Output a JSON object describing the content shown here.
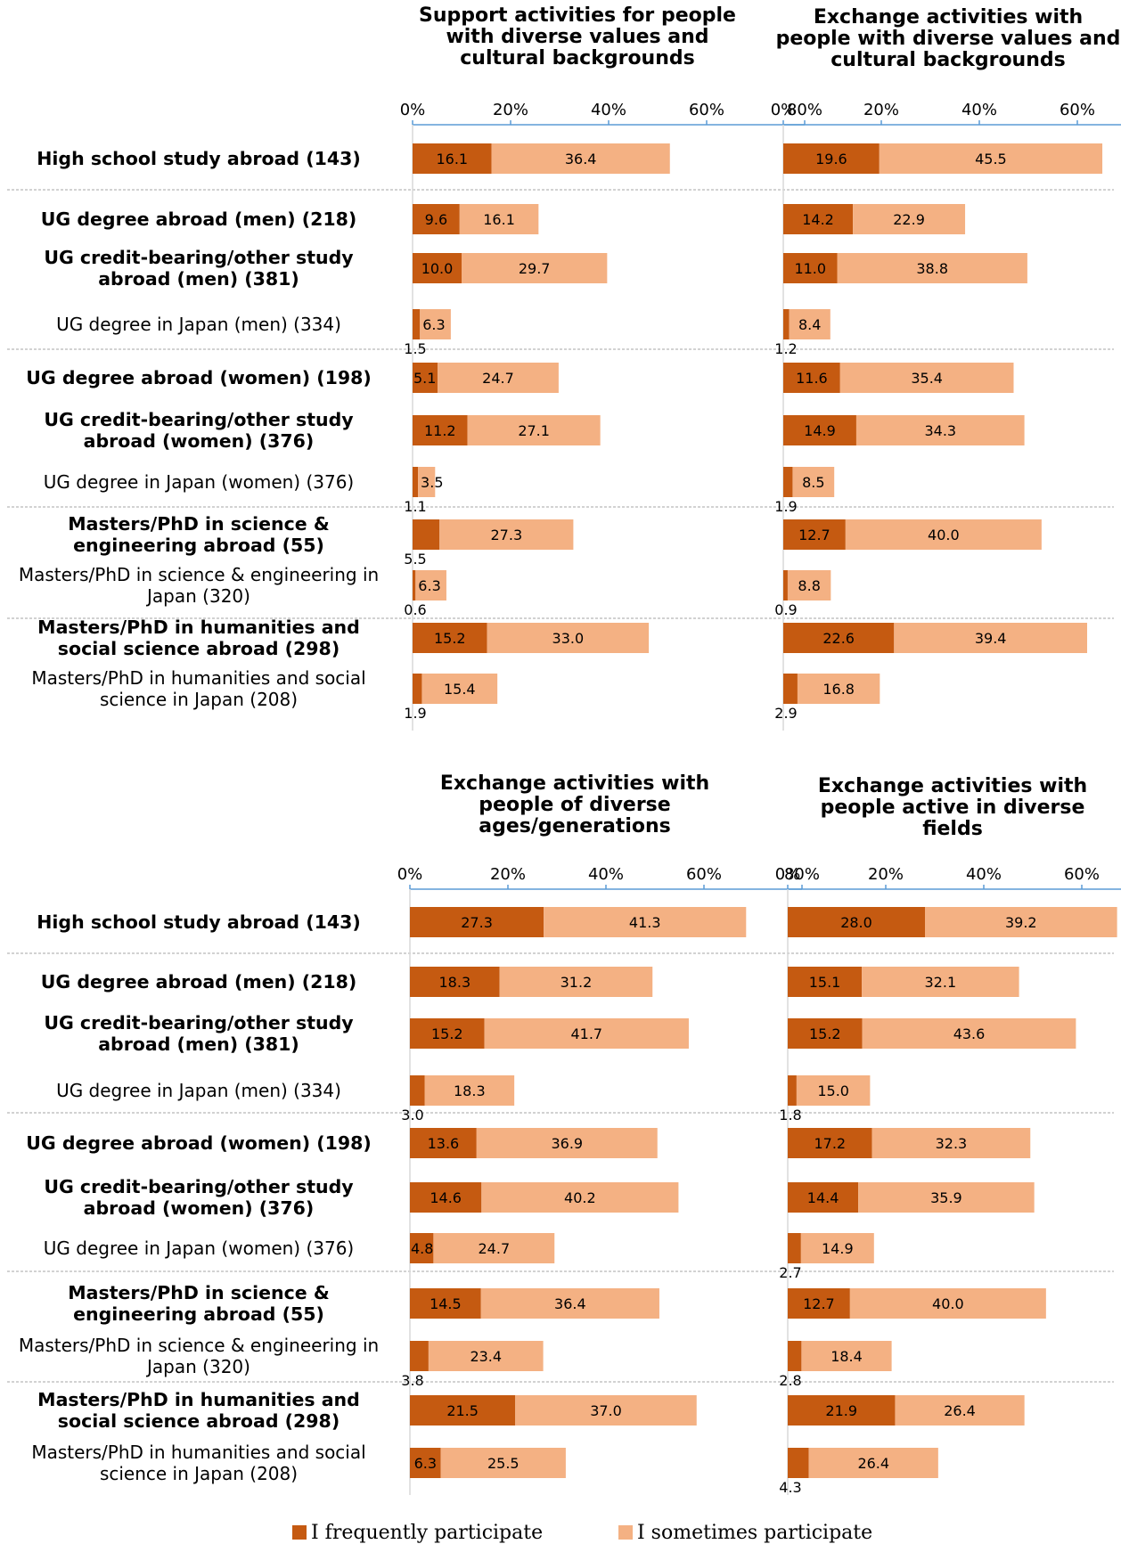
{
  "chart_data": {
    "type": "bar",
    "stacked": true,
    "orientation": "horizontal",
    "x_ticks": [
      "0%",
      "20%",
      "40%",
      "60%",
      "80%"
    ],
    "xlim": [
      0,
      80
    ],
    "colors": {
      "frequent": "#c55a11",
      "sometimes": "#f4b183",
      "axis": "#5b9bd5",
      "divider": "#a6a6a6"
    },
    "categories": [
      {
        "label": "High school study abroad (143)",
        "bold": true
      },
      {
        "label": "UG degree abroad (men) (218)",
        "bold": true
      },
      {
        "label": "UG credit-bearing/other study abroad (men) (381)",
        "bold": true
      },
      {
        "label": "UG degree in Japan (men) (334)",
        "bold": false
      },
      {
        "label": "UG degree abroad (women) (198)",
        "bold": true
      },
      {
        "label": "UG credit-bearing/other study abroad (women) (376)",
        "bold": true
      },
      {
        "label": "UG degree in Japan (women) (376)",
        "bold": false
      },
      {
        "label": "Masters/PhD in science & engineering abroad (55)",
        "bold": true
      },
      {
        "label": "Masters/PhD in science & engineering in Japan (320)",
        "bold": false
      },
      {
        "label": "Masters/PhD in humanities and social science abroad (298)",
        "bold": true
      },
      {
        "label": "Masters/PhD in humanities and social science in Japan (208)",
        "bold": false
      }
    ],
    "legend": [
      {
        "name": "I frequently participate",
        "color": "#c55a11"
      },
      {
        "name": "I sometimes participate",
        "color": "#f4b183"
      }
    ],
    "panels": [
      {
        "title": "Support activities for people with diverse values and cultural backgrounds",
        "frequent": [
          16.1,
          9.6,
          10.0,
          1.5,
          5.1,
          11.2,
          1.1,
          5.5,
          0.6,
          15.2,
          1.9
        ],
        "sometimes": [
          36.4,
          16.1,
          29.7,
          6.3,
          24.7,
          27.1,
          3.5,
          27.3,
          6.3,
          33.0,
          15.4
        ]
      },
      {
        "title": "Exchange activities with people with diverse values and cultural backgrounds",
        "frequent": [
          19.6,
          14.2,
          11.0,
          1.2,
          11.6,
          14.9,
          1.9,
          12.7,
          0.9,
          22.6,
          2.9
        ],
        "sometimes": [
          45.5,
          22.9,
          38.8,
          8.4,
          35.4,
          34.3,
          8.5,
          40.0,
          8.8,
          39.4,
          16.8
        ]
      },
      {
        "title": "Exchange activities with people of diverse ages/generations",
        "frequent": [
          27.3,
          18.3,
          15.2,
          3.0,
          13.6,
          14.6,
          4.8,
          14.5,
          3.8,
          21.5,
          6.3
        ],
        "sometimes": [
          41.3,
          31.2,
          41.7,
          18.3,
          36.9,
          40.2,
          24.7,
          36.4,
          23.4,
          37.0,
          25.5
        ]
      },
      {
        "title": "Exchange activities with people active in diverse fields",
        "frequent": [
          28.0,
          15.1,
          15.2,
          1.8,
          17.2,
          14.4,
          2.7,
          12.7,
          2.8,
          21.9,
          4.3
        ],
        "sometimes": [
          39.2,
          32.1,
          43.6,
          15.0,
          32.3,
          35.9,
          14.9,
          40.0,
          18.4,
          26.4,
          26.4
        ]
      }
    ]
  }
}
